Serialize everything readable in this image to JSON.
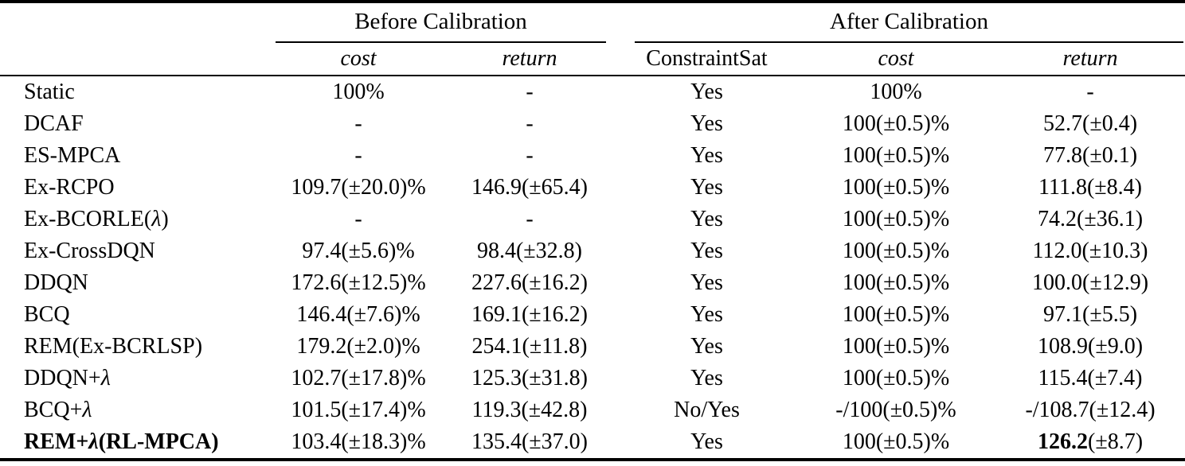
{
  "table": {
    "header": {
      "before_label": "Before Calibration",
      "after_label": "After Calibration",
      "before_cost": "cost",
      "before_return": "return",
      "constraint_sat": "ConstraintSat",
      "after_cost": "cost",
      "after_return": "return"
    },
    "rows": [
      {
        "method": "Static",
        "method_bold": false,
        "before_cost": "100%",
        "before_return": "-",
        "constraint_sat": "Yes",
        "after_cost": "100%",
        "after_return": "-",
        "after_return_bold_part": ""
      },
      {
        "method": "DCAF",
        "method_bold": false,
        "before_cost": "-",
        "before_return": "-",
        "constraint_sat": "Yes",
        "after_cost": "100(±0.5)%",
        "after_return": "52.7(±0.4)",
        "after_return_bold_part": ""
      },
      {
        "method": "ES-MPCA",
        "method_bold": false,
        "before_cost": "-",
        "before_return": "-",
        "constraint_sat": "Yes",
        "after_cost": "100(±0.5)%",
        "after_return": "77.8(±0.1)",
        "after_return_bold_part": ""
      },
      {
        "method": "Ex-RCPO",
        "method_bold": false,
        "before_cost": "109.7(±20.0)%",
        "before_return": "146.9(±65.4)",
        "constraint_sat": "Yes",
        "after_cost": "100(±0.5)%",
        "after_return": "111.8(±8.4)",
        "after_return_bold_part": ""
      },
      {
        "method": "Ex-BCORLE(λ)",
        "method_bold": false,
        "before_cost": "-",
        "before_return": "-",
        "constraint_sat": "Yes",
        "after_cost": "100(±0.5)%",
        "after_return": "74.2(±36.1)",
        "after_return_bold_part": ""
      },
      {
        "method": "Ex-CrossDQN",
        "method_bold": false,
        "before_cost": "97.4(±5.6)%",
        "before_return": "98.4(±32.8)",
        "constraint_sat": "Yes",
        "after_cost": "100(±0.5)%",
        "after_return": "112.0(±10.3)",
        "after_return_bold_part": ""
      },
      {
        "method": "DDQN",
        "method_bold": false,
        "before_cost": "172.6(±12.5)%",
        "before_return": "227.6(±16.2)",
        "constraint_sat": "Yes",
        "after_cost": "100(±0.5)%",
        "after_return": "100.0(±12.9)",
        "after_return_bold_part": ""
      },
      {
        "method": "BCQ",
        "method_bold": false,
        "before_cost": "146.4(±7.6)%",
        "before_return": "169.1(±16.2)",
        "constraint_sat": "Yes",
        "after_cost": "100(±0.5)%",
        "after_return": "97.1(±5.5)",
        "after_return_bold_part": ""
      },
      {
        "method": "REM(Ex-BCRLSP)",
        "method_bold": false,
        "before_cost": "179.2(±2.0)%",
        "before_return": "254.1(±11.8)",
        "constraint_sat": "Yes",
        "after_cost": "100(±0.5)%",
        "after_return": "108.9(±9.0)",
        "after_return_bold_part": ""
      },
      {
        "method": "DDQN+λ",
        "method_bold": false,
        "before_cost": "102.7(±17.8)%",
        "before_return": "125.3(±31.8)",
        "constraint_sat": "Yes",
        "after_cost": "100(±0.5)%",
        "after_return": "115.4(±7.4)",
        "after_return_bold_part": ""
      },
      {
        "method": "BCQ+λ",
        "method_bold": false,
        "before_cost": "101.5(±17.4)%",
        "before_return": "119.3(±42.8)",
        "constraint_sat": "No/Yes",
        "after_cost": "-/100(±0.5)%",
        "after_return": "-/108.7(±12.4)",
        "after_return_bold_part": ""
      },
      {
        "method": "REM+λ(RL-MPCA)",
        "method_bold": true,
        "before_cost": "103.4(±18.3)%",
        "before_return": "135.4(±37.0)",
        "constraint_sat": "Yes",
        "after_cost": "100(±0.5)%",
        "after_return": "126.2(±8.7)",
        "after_return_bold_part": "126.2"
      }
    ]
  },
  "colors": {
    "text": "#000000",
    "background": "#ffffff",
    "rule": "#000000"
  }
}
